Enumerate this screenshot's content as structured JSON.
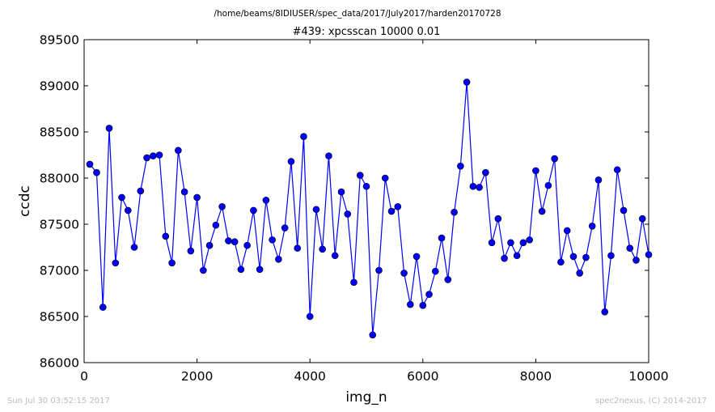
{
  "supertitle": "/home/beams/8IDIUSER/spec_data/2017/July2017/harden20170728",
  "footer": {
    "left": "Sun Jul 30 03:52:15 2017",
    "right": "spec2nexus, (C) 2014-2017"
  },
  "colors": {
    "series": "#0000ff",
    "axes": "#000000",
    "footer": "#bbbbbb"
  },
  "chart_data": {
    "type": "line",
    "title": "#439: xpcsscan 10000 0.01",
    "xlabel": "img_n",
    "ylabel": "ccdc",
    "xlim": [
      0,
      10000
    ],
    "ylim": [
      86000,
      89500
    ],
    "xticks": [
      0,
      2000,
      4000,
      6000,
      8000,
      10000
    ],
    "xtick_labels": [
      "0",
      "2000",
      "4000",
      "6000",
      "8000",
      "10000"
    ],
    "yticks": [
      86000,
      86500,
      87000,
      87500,
      88000,
      88500,
      89000,
      89500
    ],
    "ytick_labels": [
      "86000",
      "86500",
      "87000",
      "87500",
      "88000",
      "88500",
      "89000",
      "89500"
    ],
    "grid": false,
    "marker": "circle",
    "series": [
      {
        "x": [
          100,
          222,
          333,
          444,
          556,
          667,
          778,
          889,
          1000,
          1111,
          1222,
          1333,
          1444,
          1556,
          1667,
          1778,
          1889,
          2000,
          2111,
          2222,
          2333,
          2444,
          2556,
          2667,
          2778,
          2889,
          3000,
          3111,
          3222,
          3333,
          3444,
          3556,
          3667,
          3778,
          3889,
          4000,
          4111,
          4222,
          4333,
          4444,
          4556,
          4667,
          4778,
          4889,
          5000,
          5111,
          5222,
          5333,
          5444,
          5556,
          5667,
          5778,
          5889,
          6000,
          6111,
          6222,
          6333,
          6444,
          6556,
          6667,
          6778,
          6889,
          7000,
          7111,
          7222,
          7333,
          7444,
          7556,
          7667,
          7778,
          7889,
          8000,
          8111,
          8222,
          8333,
          8444,
          8556,
          8667,
          8778,
          8889,
          9000,
          9111,
          9222,
          9333,
          9444,
          9556,
          9667,
          9778,
          9889,
          10000
        ],
        "values": [
          88150,
          88060,
          86600,
          88540,
          87080,
          87790,
          87650,
          87250,
          87860,
          88220,
          88240,
          88250,
          87370,
          87080,
          88300,
          87850,
          87210,
          87790,
          87000,
          87270,
          87490,
          87690,
          87320,
          87310,
          87010,
          87270,
          87650,
          87010,
          87760,
          87330,
          87120,
          87460,
          88180,
          87240,
          88450,
          86500,
          87660,
          87230,
          88240,
          87160,
          87850,
          87610,
          86870,
          88030,
          87910,
          86300,
          87000,
          88000,
          87640,
          87690,
          86970,
          86630,
          87150,
          86620,
          86740,
          86990,
          87350,
          86900,
          87630,
          88130,
          89040,
          87910,
          87900,
          88060,
          87300,
          87560,
          87130,
          87300,
          87160,
          87300,
          87330,
          88080,
          87640,
          87920,
          88210,
          87090,
          87430,
          87150,
          86970,
          87140,
          87480,
          87980,
          86550,
          87160,
          88090,
          87650,
          87240,
          87110,
          87560,
          87170
        ]
      }
    ]
  }
}
